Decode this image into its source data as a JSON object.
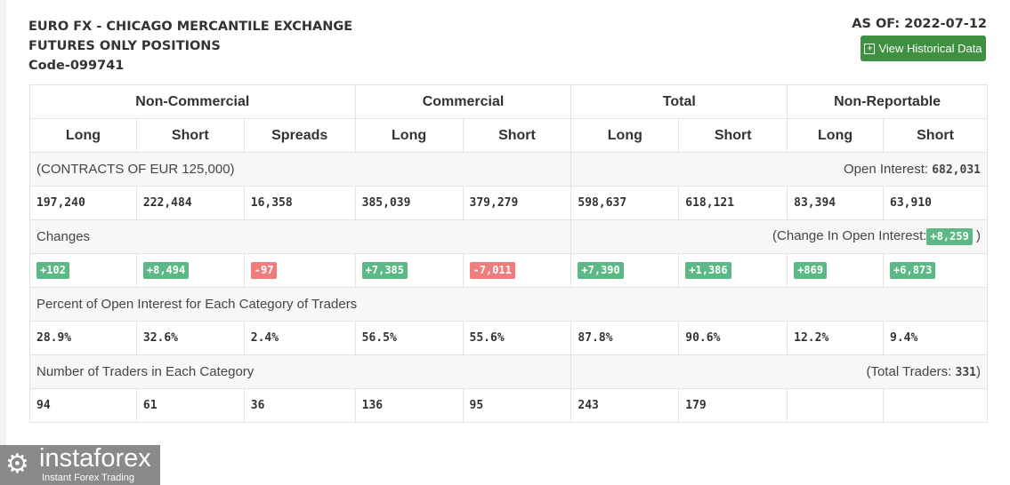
{
  "header": {
    "title_line1": "EURO FX - CHICAGO MERCANTILE EXCHANGE",
    "title_line2": "FUTURES ONLY POSITIONS",
    "code": "Code-099741",
    "as_of": "AS OF: 2022-07-12",
    "historical_button": "View Historical Data",
    "button_color": "#3f9142"
  },
  "groups": [
    "Non-Commercial",
    "Commercial",
    "Total",
    "Non-Reportable"
  ],
  "columns": [
    "Long",
    "Short",
    "Spreads",
    "Long",
    "Short",
    "Long",
    "Short",
    "Long",
    "Short"
  ],
  "contracts": {
    "label": "(CONTRACTS OF EUR 125,000)",
    "oi_label": "Open Interest:",
    "oi_value": "682,031"
  },
  "positions": [
    "197,240",
    "222,484",
    "16,358",
    "385,039",
    "379,279",
    "598,637",
    "618,121",
    "83,394",
    "63,910"
  ],
  "changes": {
    "label": "Changes",
    "oi_label": "(Change In Open Interest:",
    "oi_value": "+8,259",
    "oi_close": ")",
    "values": [
      "+102",
      "+8,494",
      "-97",
      "+7,385",
      "-7,011",
      "+7,390",
      "+1,386",
      "+869",
      "+6,873"
    ]
  },
  "percent": {
    "label": "Percent of Open Interest for Each Category of Traders",
    "values": [
      "28.9%",
      "32.6%",
      "2.4%",
      "56.5%",
      "55.6%",
      "87.8%",
      "90.6%",
      "12.2%",
      "9.4%"
    ]
  },
  "traders": {
    "label": "Number of Traders in Each Category",
    "total_label": "(Total Traders:",
    "total_value": "331",
    "total_close": ")",
    "values": [
      "94",
      "61",
      "36",
      "136",
      "95",
      "243",
      "179",
      "",
      ""
    ]
  },
  "colors": {
    "positive": "#5cb985",
    "negative": "#f07c7c"
  },
  "logo": {
    "name": "instaforex",
    "tagline": "Instant Forex Trading"
  }
}
